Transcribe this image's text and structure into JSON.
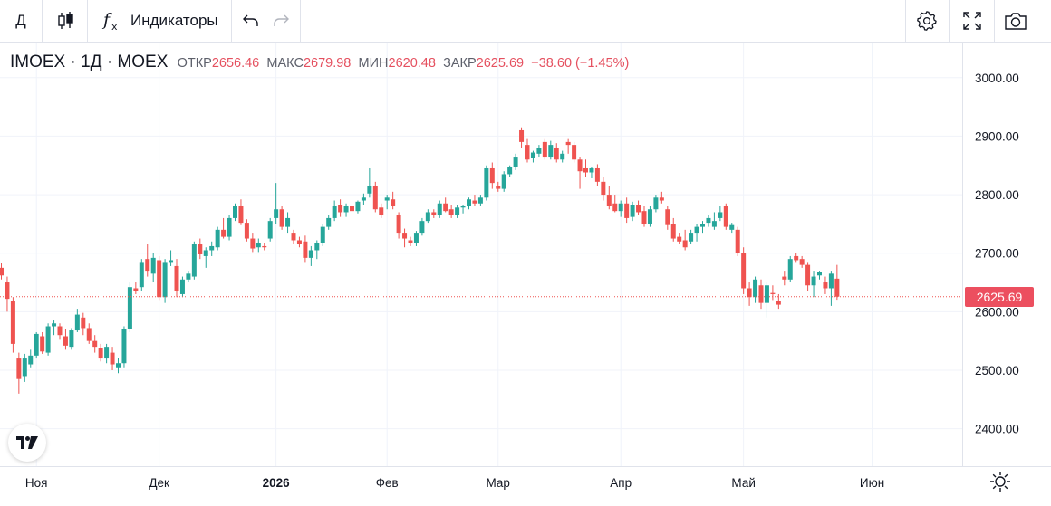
{
  "toolbar": {
    "interval_label": "Д",
    "indicators_label": "Индикаторы",
    "icons": [
      "candles-icon",
      "fx-icon",
      "undo-icon",
      "redo-icon",
      "settings-icon",
      "fullscreen-icon",
      "camera-icon"
    ]
  },
  "legend": {
    "symbol": "IMOEX · 1Д · MOEX",
    "open_label": "ОТКР",
    "open": "2656.46",
    "high_label": "МАКС",
    "high": "2679.98",
    "low_label": "МИН",
    "low": "2620.48",
    "close_label": "ЗАКР",
    "close": "2625.69",
    "change": "−38.60 (−1.45%)"
  },
  "last_price": "2625.69",
  "colors": {
    "up": "#26a69a",
    "down": "#ef5350",
    "grid": "#f0f3fa",
    "price_line": "#ef5350"
  },
  "chart_data": {
    "type": "candlestick",
    "y_ticks": [
      "3000.00",
      "2900.00",
      "2800.00",
      "2700.00",
      "2600.00",
      "2500.00",
      "2400.00"
    ],
    "ylim": [
      2336,
      3060
    ],
    "x_ticks": [
      {
        "label": "Ноя",
        "index": 6
      },
      {
        "label": "Дек",
        "index": 27
      },
      {
        "label": "2026",
        "index": 47
      },
      {
        "label": "Фев",
        "index": 66
      },
      {
        "label": "Мар",
        "index": 85
      },
      {
        "label": "Апр",
        "index": 106
      },
      {
        "label": "Май",
        "index": 127
      },
      {
        "label": "Июн",
        "index": 149
      }
    ],
    "grid": true,
    "candles": [
      [
        2675,
        2683,
        2655,
        2662
      ],
      [
        2650,
        2660,
        2600,
        2622
      ],
      [
        2618,
        2625,
        2530,
        2545
      ],
      [
        2520,
        2530,
        2460,
        2485
      ],
      [
        2490,
        2528,
        2480,
        2520
      ],
      [
        2510,
        2535,
        2505,
        2525
      ],
      [
        2525,
        2565,
        2520,
        2562
      ],
      [
        2558,
        2565,
        2528,
        2532
      ],
      [
        2530,
        2580,
        2525,
        2575
      ],
      [
        2575,
        2585,
        2560,
        2580
      ],
      [
        2575,
        2580,
        2552,
        2560
      ],
      [
        2558,
        2570,
        2535,
        2542
      ],
      [
        2540,
        2572,
        2535,
        2568
      ],
      [
        2568,
        2605,
        2565,
        2595
      ],
      [
        2590,
        2598,
        2560,
        2572
      ],
      [
        2572,
        2580,
        2545,
        2550
      ],
      [
        2550,
        2560,
        2530,
        2540
      ],
      [
        2538,
        2545,
        2515,
        2520
      ],
      [
        2520,
        2545,
        2512,
        2540
      ],
      [
        2530,
        2540,
        2500,
        2510
      ],
      [
        2505,
        2520,
        2495,
        2512
      ],
      [
        2512,
        2575,
        2505,
        2570
      ],
      [
        2570,
        2650,
        2565,
        2642
      ],
      [
        2640,
        2650,
        2630,
        2635
      ],
      [
        2642,
        2690,
        2635,
        2685
      ],
      [
        2690,
        2715,
        2660,
        2670
      ],
      [
        2665,
        2700,
        2650,
        2692
      ],
      [
        2688,
        2695,
        2620,
        2625
      ],
      [
        2625,
        2690,
        2615,
        2685
      ],
      [
        2685,
        2705,
        2678,
        2688
      ],
      [
        2678,
        2690,
        2625,
        2635
      ],
      [
        2630,
        2660,
        2625,
        2655
      ],
      [
        2655,
        2670,
        2650,
        2665
      ],
      [
        2660,
        2720,
        2655,
        2715
      ],
      [
        2715,
        2725,
        2690,
        2698
      ],
      [
        2695,
        2710,
        2675,
        2705
      ],
      [
        2705,
        2720,
        2695,
        2712
      ],
      [
        2710,
        2745,
        2705,
        2740
      ],
      [
        2740,
        2760,
        2725,
        2728
      ],
      [
        2728,
        2765,
        2722,
        2760
      ],
      [
        2760,
        2785,
        2755,
        2780
      ],
      [
        2780,
        2792,
        2748,
        2752
      ],
      [
        2752,
        2758,
        2720,
        2725
      ],
      [
        2725,
        2735,
        2702,
        2708
      ],
      [
        2710,
        2725,
        2702,
        2718
      ],
      [
        2712,
        2718,
        2705,
        2710
      ],
      [
        2725,
        2760,
        2720,
        2755
      ],
      [
        2760,
        2820,
        2750,
        2775
      ],
      [
        2775,
        2780,
        2740,
        2745
      ],
      [
        2745,
        2770,
        2735,
        2760
      ],
      [
        2735,
        2740,
        2715,
        2722
      ],
      [
        2722,
        2728,
        2710,
        2715
      ],
      [
        2720,
        2730,
        2685,
        2692
      ],
      [
        2692,
        2712,
        2678,
        2705
      ],
      [
        2705,
        2722,
        2690,
        2718
      ],
      [
        2718,
        2750,
        2712,
        2745
      ],
      [
        2745,
        2765,
        2740,
        2760
      ],
      [
        2760,
        2790,
        2755,
        2780
      ],
      [
        2782,
        2792,
        2762,
        2770
      ],
      [
        2770,
        2785,
        2762,
        2780
      ],
      [
        2780,
        2790,
        2768,
        2772
      ],
      [
        2772,
        2790,
        2768,
        2788
      ],
      [
        2790,
        2802,
        2782,
        2795
      ],
      [
        2802,
        2845,
        2795,
        2815
      ],
      [
        2815,
        2822,
        2770,
        2775
      ],
      [
        2778,
        2785,
        2760,
        2765
      ],
      [
        2790,
        2800,
        2775,
        2795
      ],
      [
        2792,
        2805,
        2775,
        2780
      ],
      [
        2765,
        2770,
        2725,
        2735
      ],
      [
        2735,
        2742,
        2710,
        2725
      ],
      [
        2722,
        2728,
        2712,
        2718
      ],
      [
        2718,
        2738,
        2712,
        2735
      ],
      [
        2735,
        2760,
        2730,
        2755
      ],
      [
        2755,
        2775,
        2752,
        2770
      ],
      [
        2770,
        2775,
        2760,
        2765
      ],
      [
        2765,
        2790,
        2760,
        2785
      ],
      [
        2785,
        2795,
        2770,
        2772
      ],
      [
        2775,
        2782,
        2760,
        2765
      ],
      [
        2765,
        2782,
        2760,
        2778
      ],
      [
        2778,
        2782,
        2768,
        2780
      ],
      [
        2780,
        2795,
        2775,
        2792
      ],
      [
        2790,
        2800,
        2780,
        2785
      ],
      [
        2785,
        2800,
        2780,
        2795
      ],
      [
        2795,
        2850,
        2790,
        2845
      ],
      [
        2845,
        2855,
        2810,
        2820
      ],
      [
        2815,
        2822,
        2805,
        2810
      ],
      [
        2810,
        2840,
        2805,
        2835
      ],
      [
        2835,
        2850,
        2830,
        2848
      ],
      [
        2848,
        2870,
        2842,
        2865
      ],
      [
        2910,
        2915,
        2880,
        2890
      ],
      [
        2885,
        2895,
        2855,
        2860
      ],
      [
        2862,
        2875,
        2855,
        2872
      ],
      [
        2870,
        2885,
        2865,
        2880
      ],
      [
        2890,
        2895,
        2860,
        2865
      ],
      [
        2865,
        2892,
        2860,
        2885
      ],
      [
        2880,
        2888,
        2855,
        2860
      ],
      [
        2860,
        2875,
        2855,
        2870
      ],
      [
        2890,
        2895,
        2870,
        2885
      ],
      [
        2885,
        2890,
        2855,
        2860
      ],
      [
        2860,
        2865,
        2810,
        2840
      ],
      [
        2845,
        2860,
        2830,
        2838
      ],
      [
        2838,
        2848,
        2828,
        2845
      ],
      [
        2845,
        2852,
        2815,
        2822
      ],
      [
        2822,
        2830,
        2790,
        2800
      ],
      [
        2800,
        2815,
        2775,
        2780
      ],
      [
        2785,
        2800,
        2770,
        2772
      ],
      [
        2772,
        2790,
        2762,
        2785
      ],
      [
        2785,
        2795,
        2752,
        2760
      ],
      [
        2762,
        2788,
        2755,
        2782
      ],
      [
        2782,
        2790,
        2765,
        2770
      ],
      [
        2772,
        2780,
        2745,
        2750
      ],
      [
        2750,
        2780,
        2745,
        2775
      ],
      [
        2775,
        2800,
        2770,
        2795
      ],
      [
        2795,
        2805,
        2785,
        2790
      ],
      [
        2775,
        2780,
        2740,
        2748
      ],
      [
        2750,
        2760,
        2720,
        2725
      ],
      [
        2728,
        2735,
        2715,
        2720
      ],
      [
        2722,
        2740,
        2705,
        2710
      ],
      [
        2720,
        2740,
        2715,
        2735
      ],
      [
        2735,
        2750,
        2720,
        2745
      ],
      [
        2745,
        2755,
        2735,
        2750
      ],
      [
        2752,
        2765,
        2745,
        2760
      ],
      [
        2745,
        2770,
        2740,
        2755
      ],
      [
        2760,
        2780,
        2755,
        2770
      ],
      [
        2780,
        2785,
        2740,
        2745
      ],
      [
        2740,
        2752,
        2735,
        2748
      ],
      [
        2740,
        2745,
        2695,
        2700
      ],
      [
        2700,
        2710,
        2630,
        2640
      ],
      [
        2640,
        2650,
        2610,
        2625
      ],
      [
        2625,
        2660,
        2615,
        2655
      ],
      [
        2645,
        2655,
        2605,
        2615
      ],
      [
        2615,
        2650,
        2590,
        2645
      ],
      [
        2632,
        2645,
        2620,
        2630
      ],
      [
        2618,
        2630,
        2605,
        2612
      ],
      [
        2660,
        2670,
        2645,
        2655
      ],
      [
        2655,
        2695,
        2650,
        2690
      ],
      [
        2695,
        2700,
        2685,
        2688
      ],
      [
        2690,
        2695,
        2675,
        2680
      ],
      [
        2680,
        2685,
        2635,
        2645
      ],
      [
        2645,
        2670,
        2625,
        2660
      ],
      [
        2662,
        2670,
        2655,
        2668
      ],
      [
        2650,
        2660,
        2630,
        2640
      ],
      [
        2640,
        2670,
        2610,
        2665
      ],
      [
        2656.46,
        2679.98,
        2620.48,
        2625.69
      ]
    ]
  }
}
